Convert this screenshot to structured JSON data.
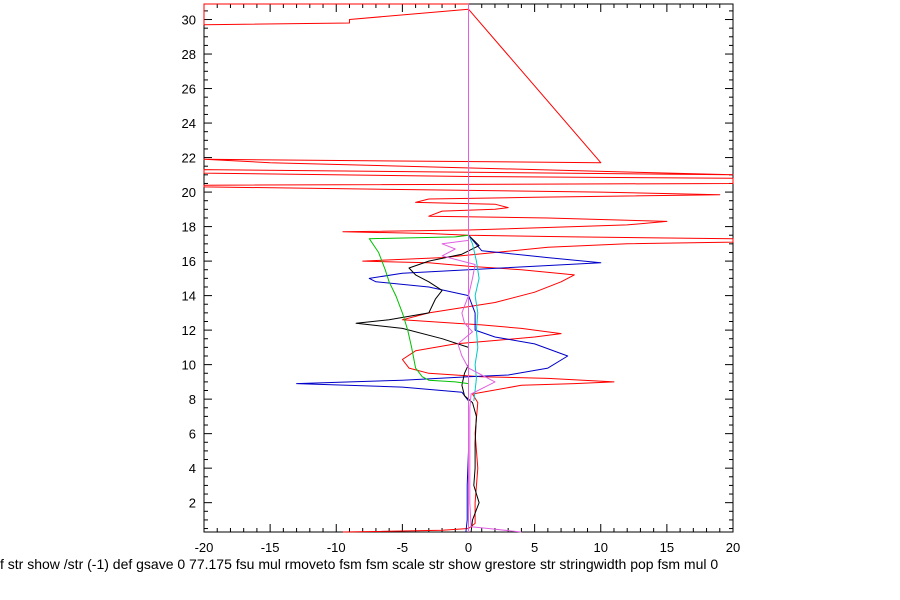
{
  "chart_data": {
    "type": "line",
    "title": "",
    "xlabel": "",
    "ylabel": "",
    "xlim": [
      -20,
      20
    ],
    "ylim": [
      0.3,
      30.9
    ],
    "grid": false,
    "legend": "none",
    "x_ticks": [
      -20,
      -15,
      -10,
      -5,
      0,
      5,
      10,
      15,
      20
    ],
    "y_ticks": [
      2,
      4,
      6,
      8,
      10,
      12,
      14,
      16,
      18,
      20,
      22,
      24,
      26,
      28,
      30
    ],
    "caption": "f str show /str (-1) def gsave 0 77.175 fsu mul rmoveto fsm fsm scale str show grestore str stringwidth pop fsm mul 0",
    "series": [
      {
        "color": "#ff0000",
        "points": [
          [
            -9.5,
            0.3
          ],
          [
            -2,
            0.4
          ],
          [
            0,
            0.5
          ],
          [
            0.5,
            0.8
          ],
          [
            0.5,
            2
          ],
          [
            0.7,
            4
          ],
          [
            0.5,
            6
          ],
          [
            0.7,
            7.8
          ],
          [
            0.3,
            8.3
          ],
          [
            4,
            8.8
          ],
          [
            8,
            8.9
          ],
          [
            11,
            9.0
          ],
          [
            6,
            9.2
          ],
          [
            1,
            9.3
          ],
          [
            -3,
            9.5
          ],
          [
            -4.5,
            9.8
          ],
          [
            -5,
            10.3
          ],
          [
            -4,
            10.8
          ],
          [
            -1,
            11.2
          ],
          [
            2,
            11.4
          ],
          [
            5,
            11.6
          ],
          [
            7,
            11.8
          ],
          [
            4,
            12.1
          ],
          [
            1,
            12.3
          ],
          [
            -1,
            12.4
          ],
          [
            -5,
            12.6
          ],
          [
            -3,
            13.0
          ],
          [
            2,
            13.6
          ],
          [
            5,
            14.2
          ],
          [
            7,
            14.8
          ],
          [
            8,
            15.2
          ],
          [
            4,
            15.5
          ],
          [
            0,
            15.7
          ],
          [
            -3,
            15.9
          ],
          [
            -8,
            16.0
          ],
          [
            -2,
            16.2
          ],
          [
            2,
            16.5
          ],
          [
            6,
            16.8
          ],
          [
            12,
            17.0
          ],
          [
            20,
            17.1
          ],
          [
            20,
            17.3
          ],
          [
            8,
            17.4
          ],
          [
            0,
            17.5
          ],
          [
            -3,
            17.6
          ],
          [
            -9.5,
            17.7
          ],
          [
            0,
            17.8
          ],
          [
            8,
            18.0
          ],
          [
            12,
            18.1
          ],
          [
            15,
            18.3
          ],
          [
            6,
            18.5
          ],
          [
            -3,
            18.6
          ],
          [
            -2,
            18.9
          ],
          [
            2,
            19.0
          ],
          [
            3,
            19.1
          ],
          [
            2,
            19.3
          ],
          [
            -4,
            19.4
          ],
          [
            -3,
            19.6
          ],
          [
            5,
            19.7
          ],
          [
            19,
            19.85
          ],
          [
            10,
            20.0
          ],
          [
            -20,
            20.3
          ],
          [
            -20,
            20.4
          ],
          [
            20,
            20.5
          ],
          [
            20,
            20.8
          ],
          [
            0,
            20.9
          ],
          [
            -20,
            21.1
          ],
          [
            -20,
            21.3
          ],
          [
            20,
            21.0
          ],
          [
            -15,
            21.7
          ],
          [
            -20,
            21.9
          ],
          [
            10,
            21.7
          ],
          [
            0,
            30.6
          ],
          [
            -9,
            30.0
          ],
          [
            -9,
            29.8
          ],
          [
            -20,
            29.7
          ],
          [
            -20,
            30.9
          ],
          [
            0,
            30.9
          ],
          [
            -20,
            30.9
          ]
        ]
      },
      {
        "color": "#0000c8",
        "points": [
          [
            -0.2,
            0.3
          ],
          [
            -0.1,
            1
          ],
          [
            -0.1,
            3
          ],
          [
            0,
            5
          ],
          [
            0,
            7
          ],
          [
            0,
            7.9
          ],
          [
            -0.5,
            8.4
          ],
          [
            -5,
            8.7
          ],
          [
            -13,
            8.9
          ],
          [
            -5,
            9.1
          ],
          [
            0,
            9.3
          ],
          [
            3,
            9.4
          ],
          [
            6,
            9.8
          ],
          [
            7.5,
            10.5
          ],
          [
            5,
            11.2
          ],
          [
            2,
            11.6
          ],
          [
            0.5,
            12.0
          ],
          [
            0.5,
            13.0
          ],
          [
            0,
            14.0
          ],
          [
            -3,
            14.5
          ],
          [
            -7,
            14.8
          ],
          [
            -7.5,
            15.0
          ],
          [
            -5,
            15.3
          ],
          [
            0,
            15.5
          ],
          [
            5,
            15.7
          ],
          [
            10,
            15.9
          ],
          [
            6,
            16.2
          ],
          [
            1,
            16.6
          ],
          [
            0,
            17.5
          ]
        ]
      },
      {
        "color": "#000000",
        "points": [
          [
            0.2,
            0.3
          ],
          [
            0.3,
            1
          ],
          [
            0.8,
            2
          ],
          [
            0.4,
            3
          ],
          [
            0.5,
            4
          ],
          [
            0.5,
            5.5
          ],
          [
            0.6,
            7
          ],
          [
            0.3,
            7.8
          ],
          [
            -0.3,
            8.2
          ],
          [
            -0.5,
            8.8
          ],
          [
            -0.3,
            9.5
          ],
          [
            0,
            10
          ],
          [
            0,
            11
          ],
          [
            -2,
            11.5
          ],
          [
            -5,
            12.1
          ],
          [
            -8.5,
            12.4
          ],
          [
            -6,
            12.6
          ],
          [
            -3,
            13.0
          ],
          [
            -2.5,
            13.8
          ],
          [
            -2,
            14.3
          ],
          [
            -3,
            14.8
          ],
          [
            -4,
            15.2
          ],
          [
            -4.5,
            15.6
          ],
          [
            -3,
            16.0
          ],
          [
            -0.5,
            16.4
          ],
          [
            0.8,
            16.9
          ],
          [
            0,
            17.5
          ]
        ]
      },
      {
        "color": "#00c000",
        "points": [
          [
            0,
            8.2
          ],
          [
            0,
            8.9
          ],
          [
            -1,
            9.0
          ],
          [
            -3,
            9.1
          ],
          [
            -3.5,
            9.3
          ],
          [
            -4,
            9.8
          ],
          [
            -4.3,
            11
          ],
          [
            -4.6,
            12
          ],
          [
            -5,
            13
          ],
          [
            -5.5,
            14
          ],
          [
            -6,
            14.8
          ],
          [
            -6.3,
            15.5
          ],
          [
            -6.8,
            16.5
          ],
          [
            -7.5,
            17.3
          ],
          [
            -1,
            17.4
          ],
          [
            0,
            17.5
          ]
        ]
      },
      {
        "color": "#00c8c8",
        "points": [
          [
            0.4,
            7.9
          ],
          [
            0.5,
            8.5
          ],
          [
            0.6,
            9.2
          ],
          [
            0.5,
            10
          ],
          [
            0.7,
            11
          ],
          [
            0.6,
            12
          ],
          [
            0.7,
            13
          ],
          [
            0.5,
            14
          ],
          [
            0.8,
            15
          ],
          [
            0.6,
            16
          ],
          [
            0.3,
            17
          ],
          [
            0,
            17.5
          ]
        ]
      },
      {
        "color": "#e060e0",
        "points": [
          [
            0,
            0.3
          ],
          [
            0,
            30.9
          ]
        ]
      },
      {
        "color": "#e060e0",
        "points": [
          [
            4,
            0.3
          ],
          [
            1.5,
            0.5
          ],
          [
            0.2,
            0.6
          ],
          [
            0.1,
            2
          ],
          [
            0.1,
            5
          ],
          [
            0.1,
            7.5
          ],
          [
            0.2,
            8.3
          ],
          [
            1.5,
            8.8
          ],
          [
            2,
            9.0
          ],
          [
            1,
            9.4
          ],
          [
            0,
            9.8
          ],
          [
            -0.5,
            10.5
          ],
          [
            -0.8,
            11.2
          ],
          [
            0.3,
            11.9
          ],
          [
            -0.3,
            12.4
          ],
          [
            -0.5,
            13.0
          ],
          [
            0,
            14.0
          ],
          [
            0.3,
            15.0
          ],
          [
            0.5,
            15.8
          ],
          [
            -1,
            16.1
          ],
          [
            -2,
            16.3
          ],
          [
            -1,
            16.7
          ],
          [
            -2,
            17.0
          ],
          [
            0,
            17.2
          ]
        ]
      }
    ]
  }
}
